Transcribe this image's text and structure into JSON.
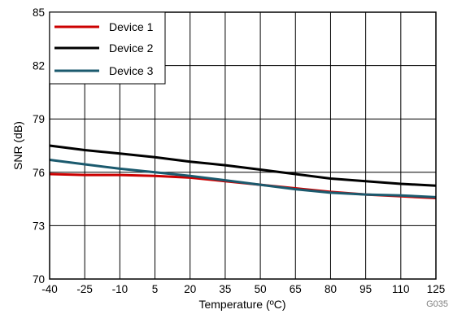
{
  "chart_data": {
    "type": "line",
    "xlabel": "Temperature (ºC)",
    "ylabel": "SNR (dB)",
    "xlim": [
      -40,
      125
    ],
    "ylim": [
      70,
      85
    ],
    "x_ticks": [
      "-40",
      "-25",
      "-10",
      "5",
      "20",
      "35",
      "50",
      "65",
      "80",
      "95",
      "110",
      "125"
    ],
    "y_ticks": [
      "70",
      "73",
      "76",
      "79",
      "82",
      "85"
    ],
    "grid": true,
    "legend_position": "top-left",
    "x": [
      -40,
      -25,
      -10,
      5,
      20,
      35,
      50,
      65,
      80,
      95,
      110,
      125
    ],
    "series": [
      {
        "name": "Device 1",
        "color": "#cc0000",
        "values": [
          75.9,
          75.85,
          75.85,
          75.8,
          75.7,
          75.5,
          75.3,
          75.1,
          74.9,
          74.75,
          74.65,
          74.55
        ]
      },
      {
        "name": "Device 2",
        "color": "#000000",
        "values": [
          77.5,
          77.25,
          77.05,
          76.85,
          76.6,
          76.4,
          76.15,
          75.9,
          75.65,
          75.5,
          75.35,
          75.25
        ]
      },
      {
        "name": "Device 3",
        "color": "#1b5a6e",
        "values": [
          76.7,
          76.45,
          76.2,
          76.0,
          75.8,
          75.55,
          75.3,
          75.05,
          74.85,
          74.75,
          74.7,
          74.6
        ]
      }
    ],
    "figure_code": "G035"
  }
}
